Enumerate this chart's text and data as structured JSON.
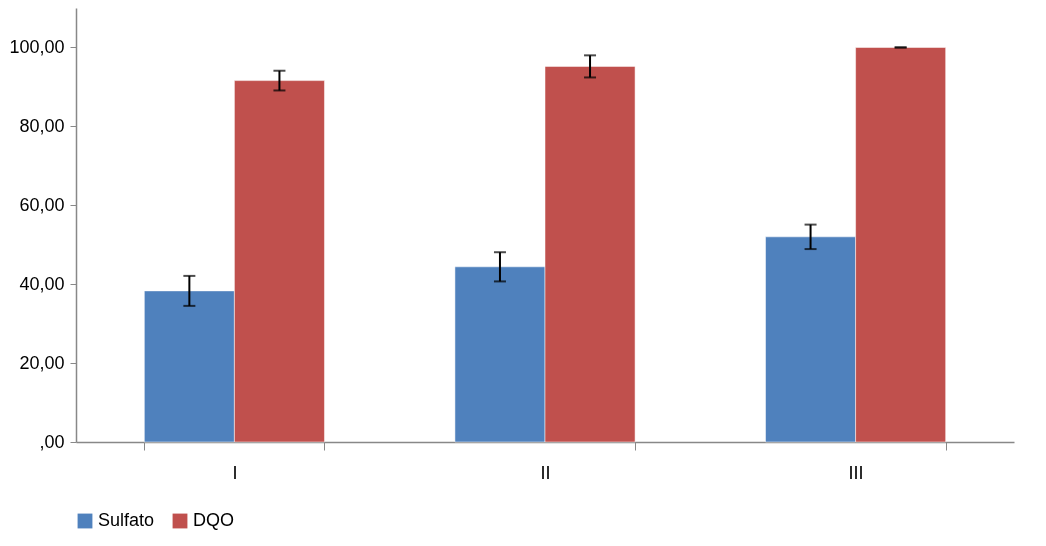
{
  "chart_data": {
    "type": "bar",
    "categories": [
      "I",
      "II",
      "III"
    ],
    "series": [
      {
        "name": "Sulfato",
        "color": "#4f81bd",
        "values": [
          38.3,
          44.4,
          52.0
        ],
        "errors": [
          3.8,
          3.7,
          3.1
        ]
      },
      {
        "name": "DQO",
        "color": "#c0504d",
        "values": [
          91.6,
          95.2,
          100
        ],
        "errors": [
          2.5,
          2.8,
          0
        ]
      }
    ],
    "ylim": [
      0,
      110
    ],
    "yticks": [
      {
        "value": 0,
        "label": ",00"
      },
      {
        "value": 20,
        "label": "20,00"
      },
      {
        "value": 40,
        "label": "40,00"
      },
      {
        "value": 60,
        "label": "60,00"
      },
      {
        "value": 80,
        "label": "80,00"
      },
      {
        "value": 100,
        "label": "100,00"
      }
    ],
    "grid": false,
    "legend": "bottom"
  }
}
